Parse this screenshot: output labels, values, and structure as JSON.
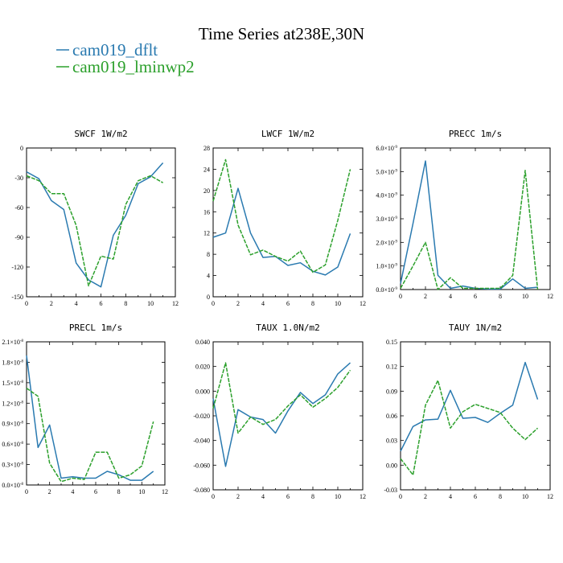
{
  "figure": {
    "title": "Time Series at238E,30N",
    "legend": [
      {
        "name": "cam019_dflt",
        "color": "#2a7ab0",
        "dash": "solid"
      },
      {
        "name": "cam019_lminwp2",
        "color": "#2ca02c",
        "dash": "dashed"
      }
    ]
  },
  "chart_data": [
    {
      "type": "line",
      "title": "SWCF   1W/m2",
      "xlim": [
        0,
        12
      ],
      "xticks": [
        "0",
        "2",
        "4",
        "6",
        "8",
        "10",
        "12"
      ],
      "ylim": [
        -150,
        0
      ],
      "yticks": [
        {
          "v": 0,
          "t": "0"
        },
        {
          "v": -30,
          "t": "-30"
        },
        {
          "v": -60,
          "t": "-60"
        },
        {
          "v": -90,
          "t": "-90"
        },
        {
          "v": -120,
          "t": "-120"
        },
        {
          "v": -150,
          "t": "-150"
        }
      ],
      "x": [
        0,
        1,
        2,
        3,
        4,
        5,
        6,
        7,
        8,
        9,
        10,
        11
      ],
      "series": [
        {
          "name": "cam019_dflt",
          "values": [
            -24,
            -31,
            -53,
            -62,
            -116,
            -133,
            -140,
            -88,
            -68,
            -36,
            -29,
            -15
          ]
        },
        {
          "name": "cam019_lminwp2",
          "values": [
            -28,
            -33,
            -46,
            -46,
            -78,
            -139,
            -109,
            -112,
            -57,
            -33,
            -28,
            -35
          ]
        }
      ]
    },
    {
      "type": "line",
      "title": "LWCF   1W/m2",
      "xlim": [
        0,
        12
      ],
      "xticks": [
        "0",
        "2",
        "4",
        "6",
        "8",
        "10",
        "12"
      ],
      "ylim": [
        0,
        28
      ],
      "yticks": [
        {
          "v": 0,
          "t": "0"
        },
        {
          "v": 4,
          "t": "4"
        },
        {
          "v": 8,
          "t": "8"
        },
        {
          "v": 12,
          "t": "12"
        },
        {
          "v": 16,
          "t": "16"
        },
        {
          "v": 20,
          "t": "20"
        },
        {
          "v": 24,
          "t": "24"
        },
        {
          "v": 28,
          "t": "28"
        }
      ],
      "x": [
        0,
        1,
        2,
        3,
        4,
        5,
        6,
        7,
        8,
        9,
        10,
        11
      ],
      "series": [
        {
          "name": "cam019_dflt",
          "values": [
            11.2,
            12,
            20.4,
            12,
            7.4,
            7.6,
            5.9,
            6.4,
            4.8,
            4.1,
            5.6,
            11.9
          ]
        },
        {
          "name": "cam019_lminwp2",
          "values": [
            18,
            25.8,
            13.5,
            7.9,
            8.8,
            7.6,
            6.7,
            8.6,
            4.6,
            6,
            14.4,
            24
          ]
        }
      ]
    },
    {
      "type": "line",
      "title": "PRECC   1m/s",
      "xlim": [
        0,
        12
      ],
      "xticks": [
        "0",
        "2",
        "4",
        "6",
        "8",
        "10",
        "12"
      ],
      "ylim": [
        0,
        6
      ],
      "ylabel_exp": "-9",
      "yticks": [
        {
          "v": 0,
          "t": "0.0×10"
        },
        {
          "v": 1,
          "t": "1.0×10"
        },
        {
          "v": 2,
          "t": "2.0×10"
        },
        {
          "v": 3,
          "t": "3.0×10"
        },
        {
          "v": 4,
          "t": "4.0×10"
        },
        {
          "v": 5,
          "t": "5.0×10"
        },
        {
          "v": 6,
          "t": "6.0×10"
        }
      ],
      "x": [
        0,
        1,
        2,
        3,
        4,
        5,
        6,
        7,
        8,
        9,
        10,
        11
      ],
      "series": [
        {
          "name": "cam019_dflt",
          "values": [
            0.25,
            2.8,
            5.45,
            0.6,
            0.05,
            0.15,
            0.05,
            0.02,
            0.02,
            0.45,
            0.05,
            0.1
          ]
        },
        {
          "name": "cam019_lminwp2",
          "values": [
            0.05,
            1,
            2,
            0,
            0.5,
            0.05,
            0.05,
            0.05,
            0.05,
            0.6,
            5.05,
            0
          ]
        }
      ]
    },
    {
      "type": "line",
      "title": "PRECL   1m/s",
      "xlim": [
        0,
        12
      ],
      "xticks": [
        "0",
        "2",
        "4",
        "6",
        "8",
        "10",
        "12"
      ],
      "ylim": [
        0,
        2.1
      ],
      "ylabel_exp": "-8",
      "yticks": [
        {
          "v": 0,
          "t": "0.0×10"
        },
        {
          "v": 0.3,
          "t": "0.3×10"
        },
        {
          "v": 0.6,
          "t": "0.6×10"
        },
        {
          "v": 0.9,
          "t": "0.9×10"
        },
        {
          "v": 1.2,
          "t": "1.2×10"
        },
        {
          "v": 1.5,
          "t": "1.5×10"
        },
        {
          "v": 1.8,
          "t": "1.8×10"
        },
        {
          "v": 2.1,
          "t": "2.1×10"
        }
      ],
      "x": [
        0,
        1,
        2,
        3,
        4,
        5,
        6,
        7,
        8,
        9,
        10,
        11
      ],
      "series": [
        {
          "name": "cam019_dflt",
          "values": [
            1.9,
            0.55,
            0.88,
            0.1,
            0.12,
            0.1,
            0.1,
            0.2,
            0.15,
            0.07,
            0.07,
            0.2
          ]
        },
        {
          "name": "cam019_lminwp2",
          "values": [
            1.42,
            1.3,
            0.32,
            0.05,
            0.1,
            0.08,
            0.48,
            0.48,
            0.1,
            0.15,
            0.28,
            0.93
          ]
        }
      ]
    },
    {
      "type": "line",
      "title": "TAUX   1.0N/m2",
      "xlim": [
        0,
        12
      ],
      "xticks": [
        "0",
        "2",
        "4",
        "6",
        "8",
        "10",
        "12"
      ],
      "ylim": [
        -0.08,
        0.04
      ],
      "yticks": [
        {
          "v": 0.04,
          "t": "0.040"
        },
        {
          "v": 0.02,
          "t": "0.020"
        },
        {
          "v": 0,
          "t": "0.000"
        },
        {
          "v": -0.02,
          "t": "-0.020"
        },
        {
          "v": -0.04,
          "t": "-0.040"
        },
        {
          "v": -0.06,
          "t": "-0.060"
        },
        {
          "v": -0.08,
          "t": "-0.080"
        }
      ],
      "x": [
        0,
        1,
        2,
        3,
        4,
        5,
        6,
        7,
        8,
        9,
        10,
        11
      ],
      "series": [
        {
          "name": "cam019_dflt",
          "values": [
            -0.006,
            -0.061,
            -0.015,
            -0.021,
            -0.023,
            -0.034,
            -0.016,
            -0.001,
            -0.01,
            -0.003,
            0.014,
            0.023
          ]
        },
        {
          "name": "cam019_lminwp2",
          "values": [
            -0.014,
            0.023,
            -0.034,
            -0.021,
            -0.027,
            -0.023,
            -0.012,
            -0.003,
            -0.013,
            -0.006,
            0.003,
            0.017
          ]
        }
      ]
    },
    {
      "type": "line",
      "title": "TAUY   1N/m2",
      "xlim": [
        0,
        12
      ],
      "xticks": [
        "0",
        "2",
        "4",
        "6",
        "8",
        "10",
        "12"
      ],
      "ylim": [
        -0.03,
        0.15
      ],
      "yticks": [
        {
          "v": 0.15,
          "t": "0.15"
        },
        {
          "v": 0.12,
          "t": "0.12"
        },
        {
          "v": 0.09,
          "t": "0.09"
        },
        {
          "v": 0.06,
          "t": "0.06"
        },
        {
          "v": 0.03,
          "t": "0.03"
        },
        {
          "v": 0,
          "t": "0.00"
        },
        {
          "v": -0.03,
          "t": "-0.03"
        }
      ],
      "x": [
        0,
        1,
        2,
        3,
        4,
        5,
        6,
        7,
        8,
        9,
        10,
        11
      ],
      "series": [
        {
          "name": "cam019_dflt",
          "values": [
            0.017,
            0.047,
            0.055,
            0.056,
            0.091,
            0.057,
            0.058,
            0.052,
            0.063,
            0.073,
            0.125,
            0.08
          ]
        },
        {
          "name": "cam019_lminwp2",
          "values": [
            0.008,
            -0.012,
            0.073,
            0.103,
            0.045,
            0.065,
            0.074,
            0.069,
            0.064,
            0.045,
            0.031,
            0.045
          ]
        }
      ]
    }
  ]
}
